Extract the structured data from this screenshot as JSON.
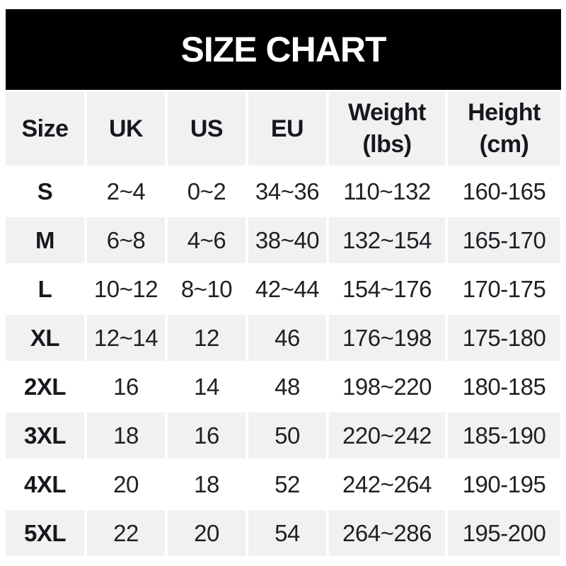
{
  "banner": {
    "title": "SIZE CHART",
    "background_color": "#000000",
    "text_color": "#ffffff"
  },
  "colors": {
    "stripe_row": "#f1f1f2",
    "plain_row": "#ffffff",
    "data_text": "#1f2025",
    "header_text": "#17181d"
  },
  "chart_data": {
    "type": "table",
    "title": "SIZE CHART",
    "columns": [
      {
        "label": "Size",
        "sublabel": ""
      },
      {
        "label": "UK",
        "sublabel": ""
      },
      {
        "label": "US",
        "sublabel": ""
      },
      {
        "label": "EU",
        "sublabel": ""
      },
      {
        "label": "Weight",
        "sublabel": "(lbs)"
      },
      {
        "label": "Height",
        "sublabel": "(cm)"
      }
    ],
    "rows": [
      {
        "size": "S",
        "uk": "2~4",
        "us": "0~2",
        "eu": "34~36",
        "weight": "110~132",
        "height": "160-165"
      },
      {
        "size": "M",
        "uk": "6~8",
        "us": "4~6",
        "eu": "38~40",
        "weight": "132~154",
        "height": "165-170"
      },
      {
        "size": "L",
        "uk": "10~12",
        "us": "8~10",
        "eu": "42~44",
        "weight": "154~176",
        "height": "170-175"
      },
      {
        "size": "XL",
        "uk": "12~14",
        "us": "12",
        "eu": "46",
        "weight": "176~198",
        "height": "175-180"
      },
      {
        "size": "2XL",
        "uk": "16",
        "us": "14",
        "eu": "48",
        "weight": "198~220",
        "height": "180-185"
      },
      {
        "size": "3XL",
        "uk": "18",
        "us": "16",
        "eu": "50",
        "weight": "220~242",
        "height": "185-190"
      },
      {
        "size": "4XL",
        "uk": "20",
        "us": "18",
        "eu": "52",
        "weight": "242~264",
        "height": "190-195"
      },
      {
        "size": "5XL",
        "uk": "22",
        "us": "20",
        "eu": "54",
        "weight": "264~286",
        "height": "195-200"
      }
    ],
    "layout": {
      "striped_rows": [
        "header",
        "M",
        "XL",
        "3XL",
        "5XL"
      ],
      "range_separator_weight": "~",
      "range_separator_height": "-"
    }
  }
}
